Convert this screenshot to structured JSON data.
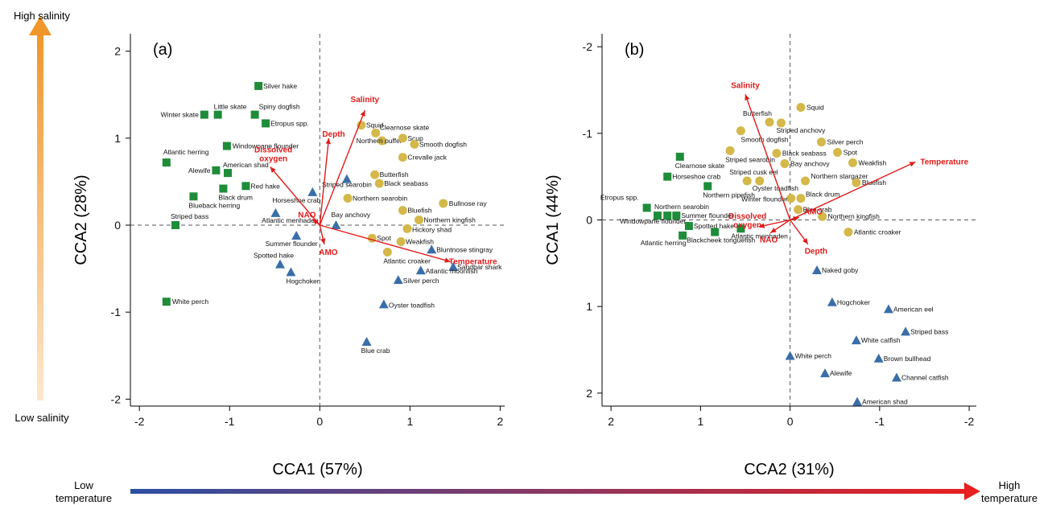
{
  "colors": {
    "square": "#1f8c3a",
    "circle": "#d4b84a",
    "triangle": "#3a6ea8",
    "vector": "#e01b1b",
    "salinity_top": "#f0962a",
    "salinity_bottom": "#fde7cc",
    "temp_left": "#2c4fa3",
    "temp_right": "#e82020"
  },
  "side_labels": {
    "high_salinity": "High salinity",
    "low_salinity": "Low salinity",
    "low_temperature": [
      "Low",
      "temperature"
    ],
    "high_temperature": [
      "High",
      "temperature"
    ]
  },
  "chart_data": [
    {
      "type": "scatter",
      "panel_label": "(a)",
      "xlabel": "CCA1 (57%)",
      "ylabel": "CCA2 (28%)",
      "xlim": [
        -2.1,
        2.05
      ],
      "ylim": [
        -2.08,
        2.2
      ],
      "xticks": [
        -2,
        -1,
        0,
        1,
        2
      ],
      "yticks": [
        -2,
        -1,
        0,
        1,
        2
      ],
      "xtick_labels": [
        "-2",
        "-1",
        "0",
        "1",
        "2"
      ],
      "ytick_labels": [
        "-2",
        "-1",
        "0",
        "1",
        "2"
      ],
      "squares": [
        {
          "name": "Silver hake",
          "x": -0.68,
          "y": 1.6
        },
        {
          "name": "Winter skate",
          "x": -1.28,
          "y": 1.27
        },
        {
          "name": "Little skate",
          "x": -1.13,
          "y": 1.27
        },
        {
          "name": "Spiny dogfish",
          "x": -0.72,
          "y": 1.27
        },
        {
          "name": "Etropus spp.",
          "x": -0.6,
          "y": 1.17
        },
        {
          "name": "Windowpane flounder",
          "x": -1.03,
          "y": 0.91
        },
        {
          "name": "Atlantic herring",
          "x": -1.7,
          "y": 0.72
        },
        {
          "name": "Alewife",
          "x": -1.15,
          "y": 0.63
        },
        {
          "name": "American shad",
          "x": -1.02,
          "y": 0.6
        },
        {
          "name": "Red hake",
          "x": -0.82,
          "y": 0.45
        },
        {
          "name": "Black drum",
          "x": -1.07,
          "y": 0.42
        },
        {
          "name": "Blueback herring",
          "x": -1.4,
          "y": 0.33
        },
        {
          "name": "Striped bass",
          "x": -1.6,
          "y": 0.0
        },
        {
          "name": "White perch",
          "x": -1.7,
          "y": -0.88
        }
      ],
      "circles": [
        {
          "name": "Squid",
          "x": 0.46,
          "y": 1.15
        },
        {
          "name": "Clearnose skate",
          "x": 0.62,
          "y": 1.06
        },
        {
          "name": "Northern puffer",
          "x": 0.69,
          "y": 0.97
        },
        {
          "name": "Scup",
          "x": 0.92,
          "y": 1.0
        },
        {
          "name": "Smooth dogfish",
          "x": 1.05,
          "y": 0.93
        },
        {
          "name": "Crevalle jack",
          "x": 0.92,
          "y": 0.78
        },
        {
          "name": "Butterfish",
          "x": 0.61,
          "y": 0.58
        },
        {
          "name": "Black seabass",
          "x": 0.66,
          "y": 0.48
        },
        {
          "name": "Northern searobin",
          "x": 0.31,
          "y": 0.31
        },
        {
          "name": "Bullnose ray",
          "x": 1.37,
          "y": 0.25
        },
        {
          "name": "Bluefish",
          "x": 0.92,
          "y": 0.17
        },
        {
          "name": "Northern kingfish",
          "x": 1.1,
          "y": 0.06
        },
        {
          "name": "Hickory shad",
          "x": 0.97,
          "y": -0.04
        },
        {
          "name": "Spot",
          "x": 0.58,
          "y": -0.15
        },
        {
          "name": "Weakfish",
          "x": 0.9,
          "y": -0.19
        },
        {
          "name": "Atlantic croaker",
          "x": 0.75,
          "y": -0.31
        }
      ],
      "triangles": [
        {
          "name": "Striped searobin",
          "x": 0.3,
          "y": 0.53
        },
        {
          "name": "Horseshoe crab",
          "x": -0.08,
          "y": 0.38
        },
        {
          "name": "Atlantic menhaden",
          "x": -0.49,
          "y": 0.14
        },
        {
          "name": "Bay anchovy",
          "x": 0.18,
          "y": 0.0
        },
        {
          "name": "Summer flounder",
          "x": -0.26,
          "y": -0.12
        },
        {
          "name": "Spotted hake",
          "x": -0.44,
          "y": -0.45
        },
        {
          "name": "Hogchoker",
          "x": -0.32,
          "y": -0.54
        },
        {
          "name": "Sandbar shark",
          "x": 1.48,
          "y": -0.48
        },
        {
          "name": "Bluntnose stingray",
          "x": 1.24,
          "y": -0.28
        },
        {
          "name": "Atlantic moonfish",
          "x": 1.12,
          "y": -0.52
        },
        {
          "name": "Silver perch",
          "x": 0.87,
          "y": -0.63
        },
        {
          "name": "Oyster toadfish",
          "x": 0.71,
          "y": -0.91
        },
        {
          "name": "Blue crab",
          "x": 0.52,
          "y": -1.34
        }
      ],
      "vectors": [
        {
          "name": "Salinity",
          "x": 0.5,
          "y": 1.32
        },
        {
          "name": "Depth",
          "x": 0.1,
          "y": 1.0
        },
        {
          "name": "Dissolved oxygen",
          "x": -0.55,
          "y": 0.67
        },
        {
          "name": "NAO",
          "x": -0.08,
          "y": 0.07
        },
        {
          "name": "AMO",
          "x": 0.05,
          "y": -0.22
        },
        {
          "name": "Temperature",
          "x": 1.45,
          "y": -0.42
        }
      ]
    },
    {
      "type": "scatter",
      "panel_label": "(b)",
      "xlabel": "CCA2 (31%)",
      "ylabel": "CCA1 (44%)",
      "xlim": [
        2.1,
        -2.08
      ],
      "ylim": [
        2.15,
        -2.15
      ],
      "xticks": [
        2,
        1,
        0,
        -1,
        -2
      ],
      "yticks": [
        -2,
        -1,
        0,
        1,
        2
      ],
      "xtick_labels": [
        "2",
        "1",
        "0",
        "-1",
        "-2"
      ],
      "ytick_labels": [
        "-2",
        "-1",
        "0",
        "1",
        "2"
      ],
      "squares": [
        {
          "name": "Clearnose skate",
          "x": 1.23,
          "y": -0.73
        },
        {
          "name": "Horseshoe crab",
          "x": 1.37,
          "y": -0.5
        },
        {
          "name": "Northern pipefish",
          "x": 0.92,
          "y": -0.39
        },
        {
          "name": "Etropus spp.",
          "x": 1.6,
          "y": -0.14
        },
        {
          "name": "Northern searobin",
          "x": 1.48,
          "y": -0.05
        },
        {
          "name": "Windowpane flounder",
          "x": 1.37,
          "y": -0.05
        },
        {
          "name": "Summer flounder",
          "x": 1.27,
          "y": -0.05
        },
        {
          "name": "Spotted hake",
          "x": 1.13,
          "y": 0.07
        },
        {
          "name": "Atlantic herring",
          "x": 1.2,
          "y": 0.18
        },
        {
          "name": "Blackcheek tonguefish",
          "x": 0.84,
          "y": 0.14
        },
        {
          "name": "Atlantic menhaden",
          "x": 0.55,
          "y": 0.1
        }
      ],
      "circles": [
        {
          "name": "Squid",
          "x": -0.12,
          "y": -1.3
        },
        {
          "name": "Butterfish",
          "x": 0.23,
          "y": -1.13
        },
        {
          "name": "Striped anchovy",
          "x": 0.1,
          "y": -1.12
        },
        {
          "name": "Smooth dogfish",
          "x": 0.55,
          "y": -1.03
        },
        {
          "name": "Silver perch",
          "x": -0.35,
          "y": -0.9
        },
        {
          "name": "Striped searobin",
          "x": 0.67,
          "y": -0.8
        },
        {
          "name": "Black seabass",
          "x": 0.15,
          "y": -0.77
        },
        {
          "name": "Spot",
          "x": -0.53,
          "y": -0.78
        },
        {
          "name": "Bay anchovy",
          "x": 0.06,
          "y": -0.65
        },
        {
          "name": "Weakfish",
          "x": -0.7,
          "y": -0.66
        },
        {
          "name": "Striped cusk eel",
          "x": 0.48,
          "y": -0.45
        },
        {
          "name": "Oyster toadfish",
          "x": 0.34,
          "y": -0.45
        },
        {
          "name": "Northern stargazer",
          "x": -0.17,
          "y": -0.45
        },
        {
          "name": "Bluefish",
          "x": -0.74,
          "y": -0.43
        },
        {
          "name": "Black drum",
          "x": -0.12,
          "y": -0.25
        },
        {
          "name": "Winter flounder",
          "x": -0.01,
          "y": -0.25
        },
        {
          "name": "Blue crab",
          "x": -0.09,
          "y": -0.12
        },
        {
          "name": "Northern kingfish",
          "x": -0.36,
          "y": -0.04
        },
        {
          "name": "Atlantic croaker",
          "x": -0.65,
          "y": 0.14
        }
      ],
      "triangles": [
        {
          "name": "Naked goby",
          "x": -0.3,
          "y": 0.58
        },
        {
          "name": "Hogchoker",
          "x": -0.47,
          "y": 0.95
        },
        {
          "name": "American eel",
          "x": -1.1,
          "y": 1.03
        },
        {
          "name": "Striped bass",
          "x": -1.29,
          "y": 1.29
        },
        {
          "name": "White catfish",
          "x": -0.74,
          "y": 1.39
        },
        {
          "name": "White perch",
          "x": 0.0,
          "y": 1.57
        },
        {
          "name": "Brown bullhead",
          "x": -0.99,
          "y": 1.6
        },
        {
          "name": "Alewife",
          "x": -0.39,
          "y": 1.77
        },
        {
          "name": "Channel catfish",
          "x": -1.19,
          "y": 1.82
        },
        {
          "name": "American shad",
          "x": -0.75,
          "y": 2.1
        }
      ],
      "vectors": [
        {
          "name": "Salinity",
          "x": 0.5,
          "y": -1.45
        },
        {
          "name": "Temperature",
          "x": -1.4,
          "y": -0.67
        },
        {
          "name": "AMO",
          "x": -0.1,
          "y": -0.03
        },
        {
          "name": "Dissolved oxygen",
          "x": 0.35,
          "y": 0.08
        },
        {
          "name": "NAO",
          "x": 0.22,
          "y": 0.15
        },
        {
          "name": "Depth",
          "x": -0.2,
          "y": 0.28
        }
      ]
    }
  ]
}
